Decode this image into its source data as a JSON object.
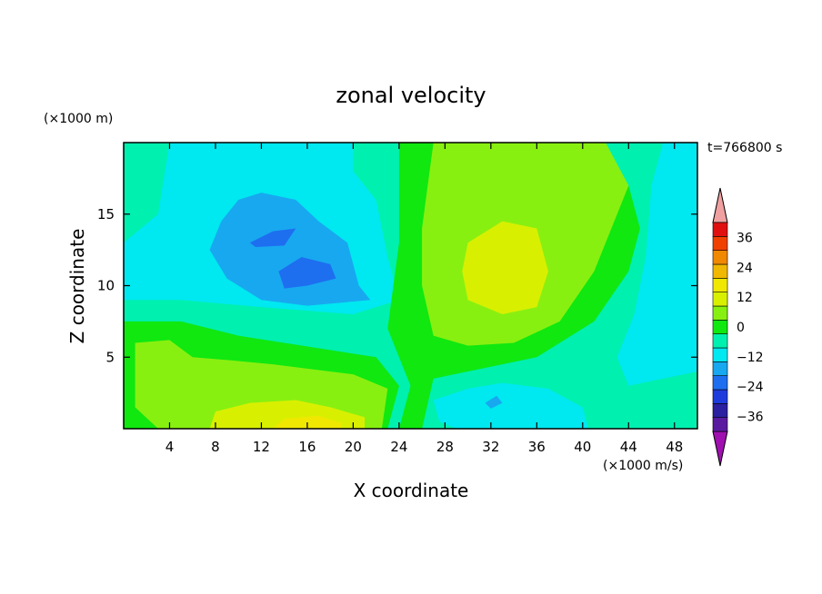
{
  "chart_data": {
    "type": "heatmap",
    "title": "zonal velocity",
    "xlabel": "X coordinate",
    "ylabel": "Z coordinate",
    "x_unit": "(×1000 m/s)",
    "y_unit": "(×1000 m)",
    "time_label": "t=766800 s",
    "xlim": [
      0,
      50
    ],
    "ylim": [
      0,
      20
    ],
    "x_ticks": [
      4,
      8,
      12,
      16,
      20,
      24,
      28,
      32,
      36,
      40,
      44,
      48
    ],
    "y_ticks": [
      5,
      10,
      15
    ],
    "colorbar": {
      "levels": [
        -42,
        -36,
        -30,
        -24,
        -18,
        -12,
        -6,
        0,
        6,
        12,
        18,
        24,
        30,
        36,
        42
      ],
      "tick_values": [
        36,
        24,
        12,
        0,
        -12,
        -24,
        -36
      ],
      "tick_labels": [
        "36",
        "24",
        "12",
        "0",
        "−12",
        "−24",
        "−36"
      ],
      "colors": [
        "#5a1aa0",
        "#2a20a0",
        "#1e3cdc",
        "#1e6ef0",
        "#18a8f0",
        "#00e8f0",
        "#00f0b0",
        "#10e810",
        "#88f010",
        "#d8f000",
        "#f0e800",
        "#f0b800",
        "#f08800",
        "#f04000",
        "#e01010"
      ],
      "under_color": "#a010b0",
      "over_color": "#f0a0a0"
    },
    "field_regions": [
      {
        "name": "background",
        "value": -3,
        "polygon": [
          [
            0,
            0
          ],
          [
            50,
            0
          ],
          [
            50,
            20
          ],
          [
            0,
            20
          ]
        ]
      },
      {
        "name": "upper-left cyan",
        "value": -9,
        "polygon": [
          [
            0,
            13
          ],
          [
            3,
            15
          ],
          [
            4,
            20
          ],
          [
            20,
            20
          ],
          [
            20,
            18
          ],
          [
            22,
            16
          ],
          [
            23,
            12
          ],
          [
            24,
            9
          ],
          [
            20,
            8
          ],
          [
            12,
            8.5
          ],
          [
            5,
            9
          ],
          [
            0,
            9
          ]
        ]
      },
      {
        "name": "upper-left blue",
        "value": -15,
        "polygon": [
          [
            7.5,
            12.5
          ],
          [
            8.5,
            14.5
          ],
          [
            10,
            16
          ],
          [
            12,
            16.5
          ],
          [
            15,
            16
          ],
          [
            17,
            14.5
          ],
          [
            19.5,
            13
          ],
          [
            20.5,
            10
          ],
          [
            21.5,
            9
          ],
          [
            16,
            8.6
          ],
          [
            12,
            9
          ],
          [
            9,
            10.5
          ]
        ]
      },
      {
        "name": "blue core 1",
        "value": -21,
        "polygon": [
          [
            11,
            13
          ],
          [
            13,
            13.8
          ],
          [
            15,
            14
          ],
          [
            14,
            12.8
          ],
          [
            11.5,
            12.7
          ]
        ]
      },
      {
        "name": "blue core 2",
        "value": -21,
        "polygon": [
          [
            13.5,
            11
          ],
          [
            15.5,
            12
          ],
          [
            18,
            11.5
          ],
          [
            18.5,
            10.5
          ],
          [
            16,
            10
          ],
          [
            14,
            9.8
          ]
        ]
      },
      {
        "name": "central green band",
        "value": 3,
        "polygon": [
          [
            24,
            20
          ],
          [
            34,
            20
          ],
          [
            38,
            19
          ],
          [
            44,
            17
          ],
          [
            45,
            14
          ],
          [
            44,
            11
          ],
          [
            41,
            7.5
          ],
          [
            36,
            5
          ],
          [
            30,
            4
          ],
          [
            27,
            3.5
          ],
          [
            26,
            0
          ],
          [
            24,
            0
          ],
          [
            25,
            3
          ],
          [
            23,
            7
          ],
          [
            24,
            13
          ]
        ]
      },
      {
        "name": "central lime region",
        "value": 9,
        "polygon": [
          [
            27,
            20
          ],
          [
            42,
            20
          ],
          [
            44,
            17
          ],
          [
            41,
            11
          ],
          [
            38,
            7.5
          ],
          [
            34,
            6
          ],
          [
            30,
            5.8
          ],
          [
            27,
            6.5
          ],
          [
            26,
            10
          ],
          [
            26,
            14
          ]
        ]
      },
      {
        "name": "lime core",
        "value": 15,
        "polygon": [
          [
            30,
            13
          ],
          [
            33,
            14.5
          ],
          [
            36,
            14
          ],
          [
            37,
            11
          ],
          [
            36,
            8.5
          ],
          [
            33,
            8
          ],
          [
            30,
            9
          ],
          [
            29.5,
            11
          ]
        ]
      },
      {
        "name": "lower-middle cyan",
        "value": -9,
        "polygon": [
          [
            27,
            2
          ],
          [
            30,
            2.8
          ],
          [
            33,
            3.2
          ],
          [
            37,
            2.8
          ],
          [
            40,
            1.5
          ],
          [
            40.5,
            0
          ],
          [
            29,
            0
          ],
          [
            27.5,
            0.5
          ]
        ]
      },
      {
        "name": "right cyan strip",
        "value": -9,
        "polygon": [
          [
            50,
            20
          ],
          [
            47,
            20
          ],
          [
            46,
            17
          ],
          [
            45.5,
            12
          ],
          [
            44.5,
            8
          ],
          [
            43,
            5
          ],
          [
            44,
            3
          ],
          [
            47,
            3.5
          ],
          [
            50,
            4
          ]
        ]
      },
      {
        "name": "lower-left green",
        "value": 3,
        "polygon": [
          [
            0,
            7.5
          ],
          [
            5,
            7.5
          ],
          [
            10,
            6.5
          ],
          [
            14,
            6
          ],
          [
            18,
            5.5
          ],
          [
            22,
            5
          ],
          [
            24,
            3
          ],
          [
            23,
            0
          ],
          [
            0,
            0
          ]
        ]
      },
      {
        "name": "lower-left lime",
        "value": 9,
        "polygon": [
          [
            1,
            6
          ],
          [
            4,
            6.2
          ],
          [
            6,
            5
          ],
          [
            9,
            4.8
          ],
          [
            13,
            4.5
          ],
          [
            16,
            4.2
          ],
          [
            20,
            3.8
          ],
          [
            23,
            2.8
          ],
          [
            22.5,
            0
          ],
          [
            3,
            0
          ],
          [
            1,
            1.5
          ]
        ]
      },
      {
        "name": "bottom yellow",
        "value": 15,
        "polygon": [
          [
            7.5,
            0
          ],
          [
            8,
            1.2
          ],
          [
            11,
            1.8
          ],
          [
            15,
            2
          ],
          [
            18,
            1.5
          ],
          [
            21,
            0.8
          ],
          [
            21,
            0
          ]
        ]
      },
      {
        "name": "bottom orange",
        "value": 21,
        "polygon": [
          [
            13,
            0
          ],
          [
            14,
            0.7
          ],
          [
            17,
            0.9
          ],
          [
            19,
            0.4
          ],
          [
            19,
            0
          ]
        ]
      },
      {
        "name": "small cyan patch",
        "value": -15,
        "polygon": [
          [
            31.5,
            1.8
          ],
          [
            32.5,
            2.3
          ],
          [
            33,
            1.8
          ],
          [
            32,
            1.4
          ]
        ]
      }
    ]
  }
}
